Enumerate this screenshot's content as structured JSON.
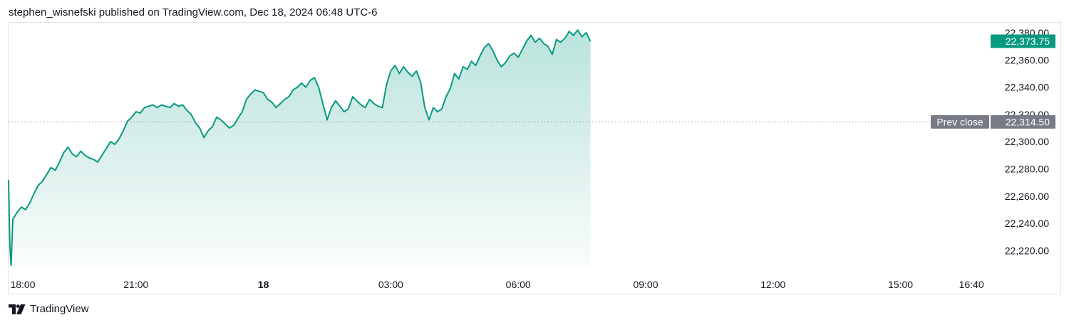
{
  "header": {
    "publisher_line": "stephen_wisnefski published on TradingView.com, Dec 18, 2024 06:48 UTC-6"
  },
  "footer": {
    "brand": "TradingView",
    "logo_icon": "tradingview-logo-icon"
  },
  "colors": {
    "line": "#089981",
    "fill_top": "#089981",
    "badge_bg": "#089981",
    "prev_close_bg": "#787b86",
    "axis_text": "#131722",
    "dotted": "#9598a1"
  },
  "chart_data": {
    "type": "area",
    "x_unit": "hours since Dec 17 18:00",
    "xlim": [
      0,
      23.4
    ],
    "ylim": [
      22205,
      22385
    ],
    "x_ticks": [
      {
        "x": 0,
        "label": "18:00",
        "bold": false
      },
      {
        "x": 3,
        "label": "21:00",
        "bold": false
      },
      {
        "x": 6,
        "label": "18",
        "bold": true
      },
      {
        "x": 9,
        "label": "03:00",
        "bold": false
      },
      {
        "x": 12,
        "label": "06:00",
        "bold": false
      },
      {
        "x": 15,
        "label": "09:00",
        "bold": false
      },
      {
        "x": 18,
        "label": "12:00",
        "bold": false
      },
      {
        "x": 21,
        "label": "15:00",
        "bold": false
      },
      {
        "x": 22.67,
        "label": "16:40",
        "bold": false
      }
    ],
    "y_ticks": [
      {
        "value": 22380,
        "label": "22,380.00"
      },
      {
        "value": 22360,
        "label": "22,360.00"
      },
      {
        "value": 22340,
        "label": "22,340.00"
      },
      {
        "value": 22320,
        "label": "22,320.00"
      },
      {
        "value": 22300,
        "label": "22,300.00"
      },
      {
        "value": 22280,
        "label": "22,280.00"
      },
      {
        "value": 22260,
        "label": "22,260.00"
      },
      {
        "value": 22240,
        "label": "22,240.00"
      },
      {
        "value": 22220,
        "label": "22,220.00"
      }
    ],
    "last_price": {
      "value": 22373.75,
      "label": "22,373.75"
    },
    "prev_close": {
      "value": 22314.5,
      "label": "22,314.50",
      "text": "Prev close"
    },
    "series": [
      {
        "x": [
          0,
          0.03,
          0.06,
          0.1,
          0.2,
          0.3,
          0.4,
          0.5,
          0.6,
          0.7,
          0.8,
          0.9,
          1.0,
          1.1,
          1.2,
          1.3,
          1.4,
          1.5,
          1.6,
          1.7,
          1.8,
          1.9,
          2.0,
          2.1,
          2.2,
          2.3,
          2.4,
          2.5,
          2.6,
          2.7,
          2.8,
          2.9,
          3.0,
          3.1,
          3.2,
          3.3,
          3.4,
          3.5,
          3.6,
          3.7,
          3.8,
          3.9,
          4.0,
          4.1,
          4.2,
          4.3,
          4.4,
          4.5,
          4.6,
          4.7,
          4.8,
          4.9,
          5.0,
          5.1,
          5.2,
          5.3,
          5.4,
          5.5,
          5.6,
          5.7,
          5.8,
          5.9,
          6.0,
          6.1,
          6.2,
          6.3,
          6.4,
          6.5,
          6.6,
          6.7,
          6.8,
          6.9,
          7.0,
          7.1,
          7.2,
          7.3,
          7.4,
          7.5,
          7.6,
          7.7,
          7.8,
          7.9,
          8.0,
          8.1,
          8.2,
          8.3,
          8.4,
          8.5,
          8.6,
          8.7,
          8.8,
          8.9,
          9.0,
          9.1,
          9.2,
          9.3,
          9.4,
          9.5,
          9.6,
          9.7,
          9.8,
          9.9,
          10.0,
          10.1,
          10.2,
          10.3,
          10.4,
          10.5,
          10.6,
          10.7,
          10.8,
          10.9,
          11.0,
          11.1,
          11.2,
          11.3,
          11.4,
          11.5,
          11.6,
          11.7,
          11.8,
          11.9,
          12.0,
          12.1,
          12.2,
          12.3,
          12.4,
          12.5,
          12.6,
          12.7,
          12.8,
          12.9,
          13.0,
          13.1,
          13.2,
          13.3,
          13.4,
          13.5,
          13.6,
          13.7
        ],
        "values": [
          22272,
          22224,
          22209,
          22243,
          22248,
          22252,
          22250,
          22255,
          22262,
          22268,
          22271,
          22276,
          22281,
          22279,
          22285,
          22292,
          22296,
          22291,
          22289,
          22293,
          22290,
          22288,
          22287,
          22285,
          22290,
          22295,
          22300,
          22298,
          22302,
          22308,
          22315,
          22318,
          22322,
          22321,
          22325,
          22326,
          22327,
          22325,
          22327,
          22326,
          22325,
          22328,
          22326,
          22327,
          22323,
          22320,
          22314,
          22310,
          22303,
          22308,
          22311,
          22318,
          22316,
          22313,
          22310,
          22312,
          22317,
          22322,
          22331,
          22335,
          22338,
          22337,
          22336,
          22331,
          22329,
          22325,
          22328,
          22331,
          22333,
          22338,
          22340,
          22343,
          22340,
          22345,
          22347,
          22340,
          22328,
          22316,
          22325,
          22330,
          22326,
          22322,
          22324,
          22333,
          22330,
          22327,
          22325,
          22331,
          22328,
          22326,
          22325,
          22342,
          22352,
          22356,
          22350,
          22355,
          22351,
          22348,
          22352,
          22344,
          22325,
          22316,
          22325,
          22322,
          22324,
          22333,
          22339,
          22350,
          22346,
          22355,
          22353,
          22359,
          22356,
          22363,
          22369,
          22372,
          22367,
          22360,
          22355,
          22358,
          22363,
          22365,
          22362,
          22368,
          22374,
          22378,
          22373,
          22376,
          22372,
          22370,
          22364,
          22375,
          22373,
          22376,
          22381,
          22378,
          22382,
          22377,
          22380,
          22373.75
        ]
      }
    ]
  }
}
